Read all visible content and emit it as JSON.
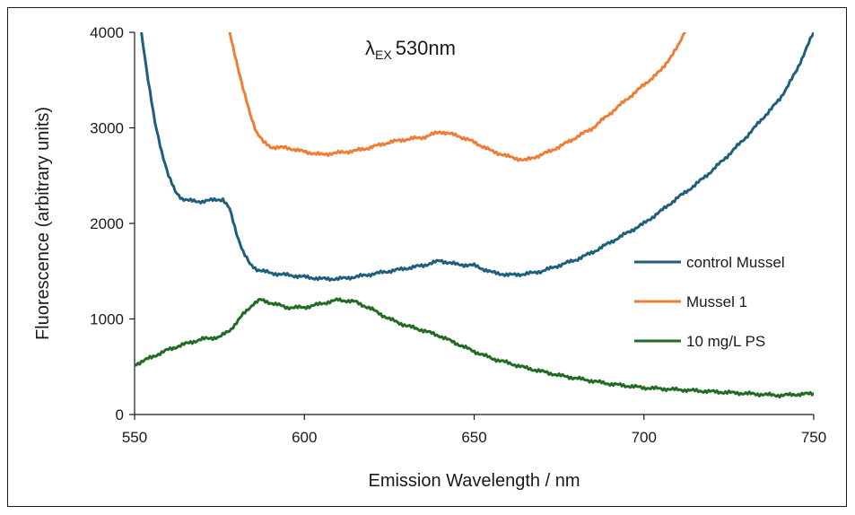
{
  "chart_data": {
    "type": "line",
    "title": "",
    "annotation": {
      "lambda": "λ",
      "subscript": "EX",
      "value": "530nm"
    },
    "xlabel": "Emission Wavelength / nm",
    "ylabel": "Fluorescence (arbitrary units)",
    "xlim": [
      550,
      750
    ],
    "ylim": [
      0,
      4000
    ],
    "xticks": [
      550,
      600,
      650,
      700,
      750
    ],
    "yticks": [
      0,
      1000,
      2000,
      3000,
      4000
    ],
    "grid": false,
    "legend_position": "right",
    "series": [
      {
        "name": "control Mussel",
        "color": "#1f5f7e",
        "x": [
          552,
          554,
          556,
          558,
          560,
          562,
          564,
          566,
          568,
          570,
          572,
          574,
          576,
          578,
          580,
          582,
          584,
          586,
          588,
          590,
          595,
          600,
          605,
          610,
          615,
          620,
          625,
          630,
          635,
          640,
          645,
          650,
          655,
          660,
          665,
          670,
          675,
          680,
          685,
          690,
          695,
          700,
          705,
          710,
          715,
          720,
          725,
          730,
          735,
          740,
          745,
          748,
          750
        ],
        "values": [
          4000,
          3500,
          3050,
          2750,
          2500,
          2330,
          2260,
          2240,
          2230,
          2230,
          2240,
          2250,
          2250,
          2150,
          1900,
          1700,
          1570,
          1520,
          1500,
          1480,
          1460,
          1440,
          1420,
          1420,
          1440,
          1470,
          1500,
          1530,
          1560,
          1610,
          1570,
          1560,
          1490,
          1460,
          1470,
          1500,
          1560,
          1620,
          1700,
          1800,
          1900,
          2000,
          2130,
          2270,
          2400,
          2550,
          2720,
          2900,
          3100,
          3300,
          3600,
          3850,
          4000
        ]
      },
      {
        "name": "Mussel 1",
        "color": "#ee7d36",
        "x": [
          578,
          580,
          582,
          584,
          586,
          588,
          590,
          595,
          600,
          605,
          610,
          615,
          620,
          625,
          630,
          635,
          640,
          645,
          650,
          655,
          660,
          665,
          670,
          675,
          680,
          685,
          690,
          695,
          700,
          705,
          710,
          712
        ],
        "values": [
          4000,
          3700,
          3400,
          3150,
          2950,
          2850,
          2800,
          2790,
          2750,
          2720,
          2740,
          2760,
          2800,
          2850,
          2880,
          2900,
          2960,
          2920,
          2850,
          2760,
          2700,
          2660,
          2720,
          2800,
          2900,
          3000,
          3150,
          3300,
          3450,
          3600,
          3850,
          4000
        ]
      },
      {
        "name": "10 mg/L PS",
        "color": "#226b23",
        "x": [
          550,
          555,
          560,
          565,
          570,
          575,
          578,
          580,
          582,
          585,
          587,
          590,
          595,
          600,
          605,
          610,
          615,
          620,
          625,
          630,
          635,
          640,
          645,
          650,
          655,
          660,
          665,
          670,
          675,
          680,
          685,
          690,
          695,
          700,
          705,
          710,
          715,
          720,
          725,
          730,
          735,
          740,
          745,
          750
        ],
        "values": [
          520,
          600,
          680,
          740,
          790,
          810,
          880,
          960,
          1050,
          1160,
          1200,
          1170,
          1120,
          1120,
          1160,
          1200,
          1180,
          1100,
          1000,
          930,
          880,
          820,
          740,
          660,
          590,
          540,
          490,
          450,
          410,
          380,
          350,
          320,
          300,
          280,
          270,
          260,
          250,
          240,
          230,
          220,
          210,
          200,
          210,
          220
        ]
      }
    ]
  }
}
